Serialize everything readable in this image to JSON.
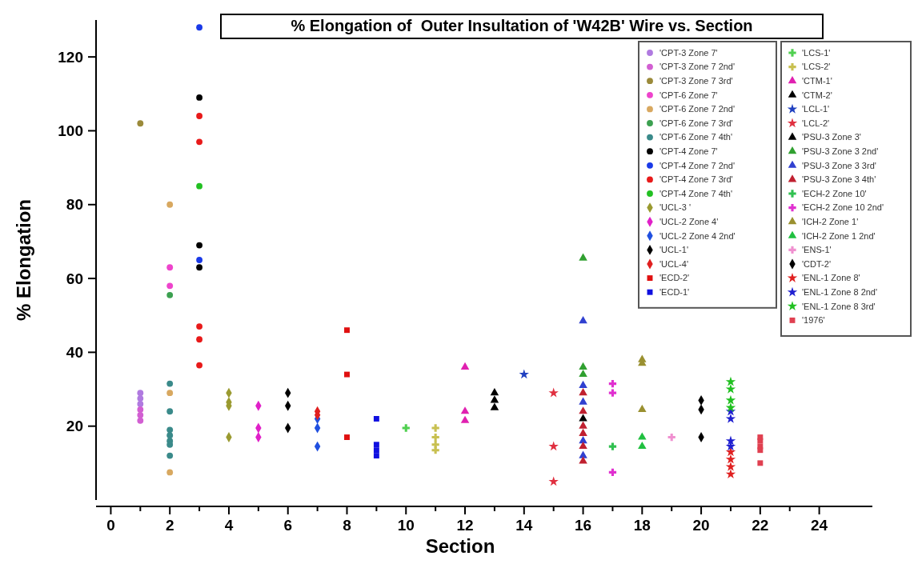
{
  "chart_data": {
    "type": "scatter",
    "title": "% Elongation of  Outer Insultation of 'W42B' Wire vs. Section",
    "xlabel": "Section",
    "ylabel": "% Elongation",
    "xlim": [
      -0.5,
      25.8
    ],
    "ylim": [
      0,
      130
    ],
    "xticks": [
      0,
      {
        "value": 1,
        "label": null
      },
      2,
      {
        "value": 3,
        "label": null
      },
      4,
      {
        "value": 5,
        "label": null
      },
      6,
      {
        "value": 7,
        "label": null
      },
      8,
      {
        "value": 9,
        "label": null
      },
      10,
      {
        "value": 11,
        "label": null
      },
      12,
      {
        "value": 13,
        "label": null
      },
      14,
      {
        "value": 15,
        "label": null
      },
      16,
      {
        "value": 17,
        "label": null
      },
      18,
      {
        "value": 19,
        "label": null
      },
      20,
      {
        "value": 21,
        "label": null
      },
      22,
      {
        "value": 23,
        "label": null
      },
      24
    ],
    "yticks": [
      20,
      40,
      60,
      80,
      100,
      120
    ],
    "grid": false,
    "legend": "top right",
    "series": [
      {
        "name": "'CPT-3 Zone 7'",
        "color": "#b07ae0",
        "marker": "circle",
        "x": [
          1,
          1,
          1
        ],
        "values": [
          29,
          27.5,
          26
        ]
      },
      {
        "name": "'CPT-3 Zone 7 2nd'",
        "color": "#d25fd2",
        "marker": "circle",
        "x": [
          1,
          1,
          1
        ],
        "values": [
          24.5,
          23,
          21.5
        ]
      },
      {
        "name": "'CPT-3 Zone 7 3rd'",
        "color": "#9b8a3a",
        "marker": "circle",
        "x": [
          1
        ],
        "values": [
          102
        ]
      },
      {
        "name": "'CPT-6 Zone 7'",
        "color": "#ee44cc",
        "marker": "circle",
        "x": [
          2,
          2
        ],
        "values": [
          63,
          58
        ]
      },
      {
        "name": "'CPT-6 Zone 7 2nd'",
        "color": "#d8a860",
        "marker": "circle",
        "x": [
          2,
          2,
          2
        ],
        "values": [
          80,
          29,
          7.5
        ]
      },
      {
        "name": "'CPT-6 Zone 7 3rd'",
        "color": "#3ca050",
        "marker": "circle",
        "x": [
          2
        ],
        "values": [
          55.5
        ]
      },
      {
        "name": "'CPT-6 Zone 7 4th'",
        "color": "#3a8a8a",
        "marker": "circle",
        "x": [
          2,
          2,
          2,
          2,
          2,
          2,
          2
        ],
        "values": [
          31.5,
          24,
          19,
          17.5,
          16,
          15,
          12
        ]
      },
      {
        "name": "'CPT-4 Zone 7'",
        "color": "#000000",
        "marker": "circle",
        "x": [
          3,
          3,
          3
        ],
        "values": [
          109,
          69,
          63
        ]
      },
      {
        "name": "'CPT-4 Zone 7 2nd'",
        "color": "#1a3ae8",
        "marker": "circle",
        "x": [
          3,
          3
        ],
        "values": [
          128,
          65
        ]
      },
      {
        "name": "'CPT-4 Zone 7 3rd'",
        "color": "#e81a1a",
        "marker": "circle",
        "x": [
          3,
          3,
          3,
          3,
          3
        ],
        "values": [
          104,
          97,
          47,
          43.5,
          36.5
        ]
      },
      {
        "name": "'CPT-4 Zone 7 4th'",
        "color": "#22c022",
        "marker": "circle",
        "x": [
          3
        ],
        "values": [
          85
        ]
      },
      {
        "name": "'UCL-3 '",
        "color": "#9a9a30",
        "marker": "diamond",
        "x": [
          4,
          4,
          4,
          4
        ],
        "values": [
          29,
          26.5,
          25.5,
          17
        ]
      },
      {
        "name": "'UCL-2 Zone 4'",
        "color": "#e020c8",
        "marker": "diamond",
        "x": [
          5,
          5,
          5
        ],
        "values": [
          25.5,
          19.5,
          17
        ]
      },
      {
        "name": "'UCL-2 Zone 4 2nd'",
        "color": "#2050e0",
        "marker": "diamond",
        "x": [
          7,
          7,
          7
        ],
        "values": [
          22,
          19.5,
          14.5
        ]
      },
      {
        "name": "'UCL-1'",
        "color": "#000000",
        "marker": "diamond",
        "x": [
          6,
          6,
          6
        ],
        "values": [
          29,
          25.5,
          19.5
        ]
      },
      {
        "name": "'UCL-4'",
        "color": "#e02020",
        "marker": "diamond",
        "x": [
          7,
          7
        ],
        "values": [
          24,
          23
        ]
      },
      {
        "name": "'ECD-2'",
        "color": "#e01010",
        "marker": "square",
        "x": [
          8,
          8,
          8
        ],
        "values": [
          46,
          34,
          17
        ]
      },
      {
        "name": "'ECD-1'",
        "color": "#1010e0",
        "marker": "square",
        "x": [
          9,
          9,
          9,
          9
        ],
        "values": [
          22,
          15,
          13.5,
          12
        ]
      },
      {
        "name": "'LCS-1'",
        "color": "#50d050",
        "marker": "cross",
        "x": [
          10
        ],
        "values": [
          19.5
        ]
      },
      {
        "name": "'LCS-2'",
        "color": "#c8c050",
        "marker": "cross",
        "x": [
          11,
          11,
          11,
          11
        ],
        "values": [
          19.5,
          17,
          15,
          13.5
        ]
      },
      {
        "name": "'CTM-1'",
        "color": "#e020b0",
        "marker": "triangle",
        "x": [
          12,
          12,
          12
        ],
        "values": [
          36,
          24,
          21.5
        ]
      },
      {
        "name": "'CTM-2'",
        "color": "#000000",
        "marker": "triangle",
        "x": [
          13,
          13,
          13
        ],
        "values": [
          29,
          27,
          25
        ]
      },
      {
        "name": "'LCL-1'",
        "color": "#2040c0",
        "marker": "star",
        "x": [
          14
        ],
        "values": [
          34
        ]
      },
      {
        "name": "'LCL-2'",
        "color": "#e03040",
        "marker": "star",
        "x": [
          15,
          15,
          15
        ],
        "values": [
          29,
          14.5,
          5
        ]
      },
      {
        "name": "'PSU-3 Zone 3'",
        "color": "#000000",
        "marker": "triangle",
        "x": [
          16
        ],
        "values": [
          22
        ]
      },
      {
        "name": "'PSU-3 Zone 3 2nd'",
        "color": "#30a030",
        "marker": "triangle",
        "x": [
          16,
          16,
          16
        ],
        "values": [
          65.5,
          36,
          34
        ]
      },
      {
        "name": "'PSU-3 Zone 3 3rd'",
        "color": "#3040d0",
        "marker": "triangle",
        "x": [
          16,
          16,
          16,
          16,
          16
        ],
        "values": [
          48.5,
          31,
          26.5,
          16,
          12
        ]
      },
      {
        "name": "'PSU-3 Zone 3 4th'",
        "color": "#c02030",
        "marker": "triangle",
        "x": [
          16,
          16,
          16,
          16,
          16,
          16
        ],
        "values": [
          29,
          24,
          20,
          18,
          14.5,
          10.5
        ]
      },
      {
        "name": "'ECH-2 Zone 10'",
        "color": "#30c050",
        "marker": "cross",
        "x": [
          17
        ],
        "values": [
          14.5
        ]
      },
      {
        "name": "'ECH-2 Zone 10 2nd'",
        "color": "#e030d0",
        "marker": "cross",
        "x": [
          17,
          17,
          17
        ],
        "values": [
          31.5,
          29,
          7.5
        ]
      },
      {
        "name": "'ICH-2 Zone 1'",
        "color": "#9a9030",
        "marker": "triangle",
        "x": [
          18,
          18,
          18
        ],
        "values": [
          38,
          37,
          24.5
        ]
      },
      {
        "name": "'ICH-2 Zone 1 2nd'",
        "color": "#20c040",
        "marker": "triangle",
        "x": [
          18,
          18
        ],
        "values": [
          17,
          14.5
        ]
      },
      {
        "name": "'ENS-1'",
        "color": "#f090d0",
        "marker": "cross",
        "x": [
          19
        ],
        "values": [
          17
        ]
      },
      {
        "name": "'CDT-2'",
        "color": "#000000",
        "marker": "diamond",
        "x": [
          20,
          20,
          20
        ],
        "values": [
          27,
          24.5,
          17
        ]
      },
      {
        "name": "'ENL-1 Zone 8'",
        "color": "#e02020",
        "marker": "star",
        "x": [
          21,
          21,
          21,
          21
        ],
        "values": [
          13,
          11,
          9,
          7
        ]
      },
      {
        "name": "'ENL-1 Zone 8 2nd'",
        "color": "#2020d0",
        "marker": "star",
        "x": [
          21,
          21,
          21,
          21
        ],
        "values": [
          24,
          22,
          16,
          14.5
        ]
      },
      {
        "name": "'ENL-1 Zone 8 3rd'",
        "color": "#20c020",
        "marker": "star",
        "x": [
          21,
          21,
          21,
          21
        ],
        "values": [
          32,
          30,
          27,
          25
        ]
      },
      {
        "name": "'1976'",
        "color": "#e04050",
        "marker": "square",
        "x": [
          22,
          22,
          22,
          22,
          22
        ],
        "values": [
          17,
          16,
          14.5,
          13.5,
          10
        ]
      }
    ]
  }
}
